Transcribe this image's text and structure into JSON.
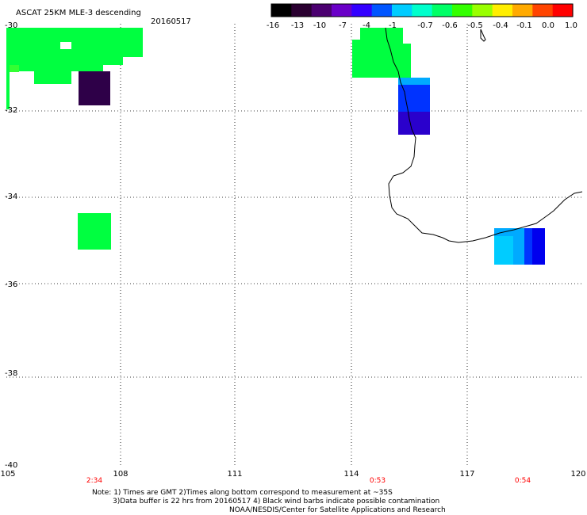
{
  "header": {
    "title": "ASCAT 25KM MLE-3 descending",
    "date": "20160517"
  },
  "colorbar": {
    "labels": [
      "-16",
      "-13",
      "-10",
      "-7",
      "-4",
      "-1",
      "-0.7",
      "-0.6",
      "-0.5",
      "-0.4",
      "-0.1",
      "0.0",
      "1.0"
    ],
    "colors": [
      "#000000",
      "#2a0030",
      "#4b0070",
      "#6a00c8",
      "#3300ff",
      "#0055ff",
      "#00ccff",
      "#00ffcc",
      "#00ff66",
      "#33ff00",
      "#99ff00",
      "#ffee00",
      "#ffaa00",
      "#ff4400",
      "#ff0000"
    ]
  },
  "axes": {
    "lat_labels": [
      "-30",
      "-32",
      "-34",
      "-36",
      "-38",
      "-40"
    ],
    "lon_labels": [
      "105",
      "108",
      "111",
      "114",
      "117",
      "120"
    ]
  },
  "pass_times": [
    "2:34",
    "0:53",
    "0:54"
  ],
  "notes": {
    "line1": "Note: 1) Times are GMT 2)Times along bottom correspond to measurement at ~35S",
    "line2": "3)Data buffer is 22 hrs from 20160517 4) Black wind barbs indicate possible contamination",
    "line3": "NOAA/NESDIS/Center for Satellite Applications and Research"
  },
  "map_colors": {
    "green": "#00ff40",
    "light_green": "#33ff33",
    "dark_purple": "#2e0048",
    "blue": "#0000ee",
    "mid_blue": "#0033ff",
    "indigo": "#2a00cc",
    "light_blue": "#00aaff",
    "cyan": "#00ccff"
  }
}
